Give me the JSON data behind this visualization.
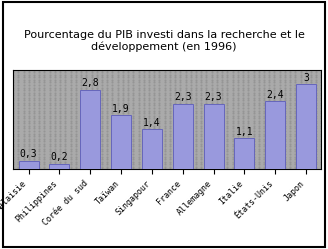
{
  "title": "Pourcentage du PIB investi dans la recherche et le\ndéveloppement (en 1996)",
  "categories": [
    "Malaisie",
    "Philippines",
    "Corée du sud",
    "Taïwan",
    "Singapour",
    "France",
    "Allemagne",
    "Italie",
    "États-Unis",
    "Japon"
  ],
  "values": [
    0.3,
    0.2,
    2.8,
    1.9,
    1.4,
    2.3,
    2.3,
    1.1,
    2.4,
    3.0
  ],
  "bar_color": "#9999dd",
  "bar_edge_color": "#6666bb",
  "plot_bg_color": "#b0b0b0",
  "outer_bg_color": "#ffffff",
  "ylim": [
    0,
    3.5
  ],
  "title_fontsize": 8,
  "label_fontsize": 6,
  "value_fontsize": 7
}
